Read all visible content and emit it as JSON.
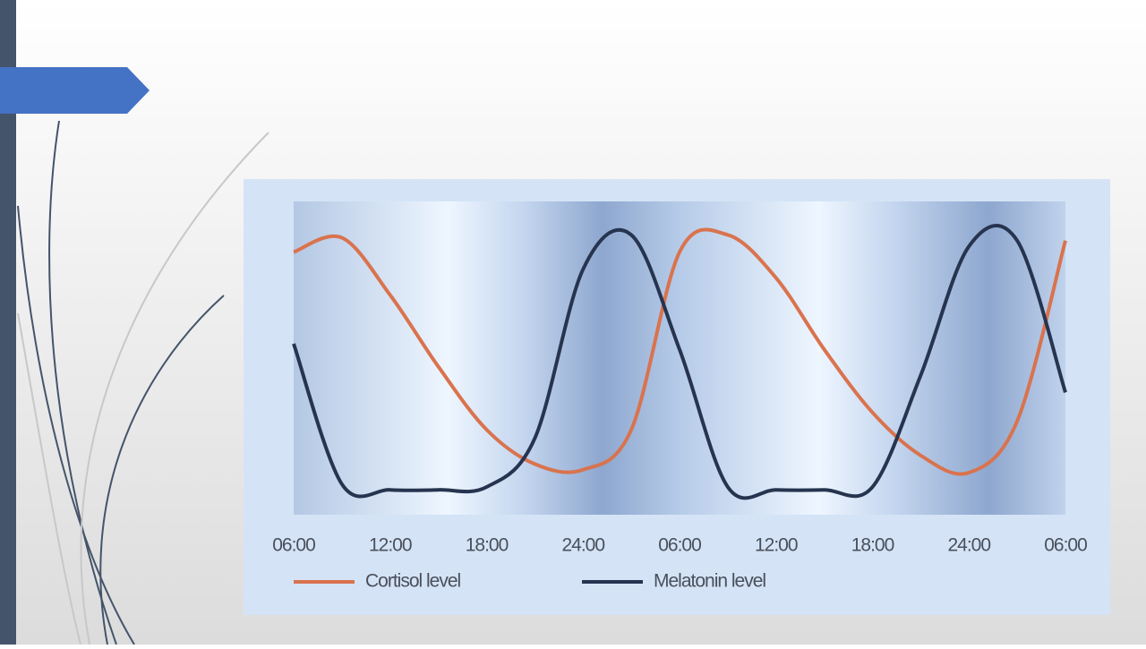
{
  "chart_data": {
    "type": "line",
    "categories": [
      "06:00",
      null,
      "12:00",
      null,
      "18:00",
      null,
      "24:00",
      null,
      "06:00",
      null,
      "12:00",
      null,
      "18:00",
      null,
      "24:00",
      null,
      "06:00"
    ],
    "series": [
      {
        "name": "Cortisol level",
        "color": "#d9734e",
        "values": [
          87,
          92,
          72,
          47,
          25,
          13,
          11,
          25,
          87,
          93,
          78,
          53,
          31,
          16,
          10,
          28,
          91
        ]
      },
      {
        "name": "Melatonin level",
        "color": "#26344f",
        "values": [
          55,
          6,
          4,
          4,
          5,
          22,
          81,
          93,
          53,
          5,
          4,
          4,
          5,
          44,
          89,
          91,
          38
        ]
      }
    ],
    "ylim": [
      0,
      100
    ]
  }
}
